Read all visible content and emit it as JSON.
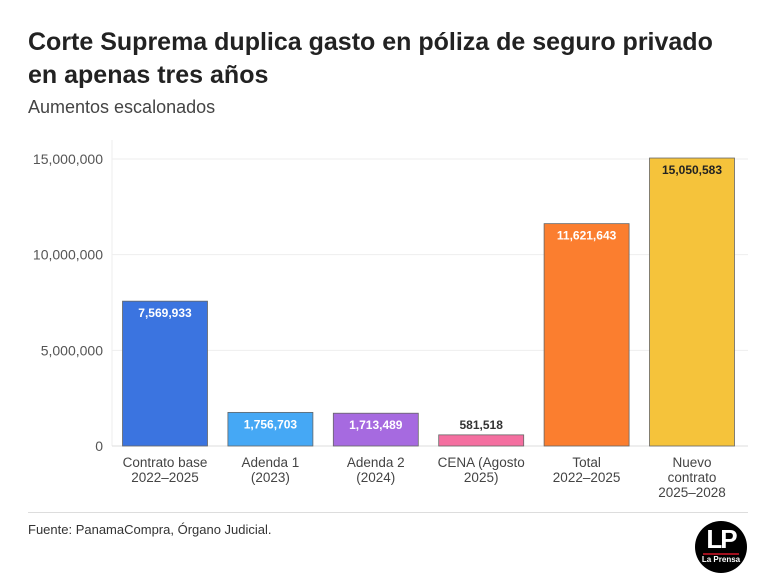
{
  "title": "Corte Suprema duplica gasto en póliza de seguro privado en apenas tres años",
  "subtitle": "Aumentos escalonados",
  "source": "Fuente: PanamaCompra, Órgano Judicial.",
  "logo_text": "LP La Prensa",
  "chart_data": {
    "type": "bar",
    "title": "Corte Suprema duplica gasto en póliza de seguro privado en apenas tres años",
    "subtitle": "Aumentos escalonados",
    "categories": [
      [
        "Contrato base",
        "2022–2025"
      ],
      [
        "Adenda 1",
        "(2023)"
      ],
      [
        "Adenda 2",
        "(2024)"
      ],
      [
        "CENA (Agosto",
        "2025)"
      ],
      [
        "Total",
        "2022–2025"
      ],
      [
        "Nuevo",
        "contrato",
        "2025–2028"
      ]
    ],
    "values": [
      7569933,
      1756703,
      1713489,
      581518,
      11621643,
      15050583
    ],
    "labels": [
      "7,569,933",
      "1,756,703",
      "1,713,489",
      "581,518",
      "11,621,643",
      "15,050,583"
    ],
    "colors": [
      "#3b74e0",
      "#45a8f5",
      "#a66ae0",
      "#f46fa0",
      "#fb7e2f",
      "#f5c33b"
    ],
    "label_colors": [
      "#ffffff",
      "#ffffff",
      "#ffffff",
      "#333333",
      "#ffffff",
      "#222222"
    ],
    "label_inside": [
      true,
      true,
      true,
      false,
      true,
      true
    ],
    "yticks": [
      0,
      5000000,
      10000000,
      15000000
    ],
    "ytick_labels": [
      "0",
      "5,000,000",
      "10,000,000",
      "15,000,000"
    ],
    "ylim": [
      0,
      15500000
    ],
    "grid": true,
    "legend": "none"
  }
}
